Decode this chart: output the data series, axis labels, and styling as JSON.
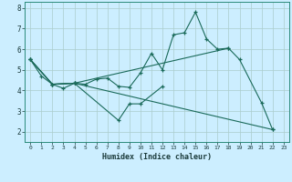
{
  "xlabel": "Humidex (Indice chaleur)",
  "background_color": "#cceeff",
  "grid_color": "#aacccc",
  "line_color": "#1a6a5a",
  "xlim": [
    -0.5,
    23.5
  ],
  "ylim": [
    1.5,
    8.3
  ],
  "yticks": [
    2,
    3,
    4,
    5,
    6,
    7,
    8
  ],
  "xticks": [
    0,
    1,
    2,
    3,
    4,
    5,
    6,
    7,
    8,
    9,
    10,
    11,
    12,
    13,
    14,
    15,
    16,
    17,
    18,
    19,
    20,
    21,
    22,
    23
  ],
  "series_connected": [
    [
      [
        0,
        5.5
      ],
      [
        1,
        4.7
      ],
      [
        2,
        4.3
      ],
      [
        3,
        4.1
      ],
      [
        4,
        4.35
      ],
      [
        5,
        4.3
      ],
      [
        6,
        4.55
      ],
      [
        7,
        4.6
      ],
      [
        8,
        4.2
      ],
      [
        9,
        4.15
      ],
      [
        10,
        4.85
      ],
      [
        11,
        5.8
      ],
      [
        12,
        5.0
      ],
      [
        13,
        6.7
      ],
      [
        14,
        6.8
      ],
      [
        15,
        7.8
      ],
      [
        16,
        6.5
      ],
      [
        17,
        6.0
      ],
      [
        18,
        6.05
      ],
      [
        19,
        5.5
      ],
      [
        21,
        3.4
      ],
      [
        22,
        2.1
      ]
    ],
    [
      [
        0,
        5.5
      ],
      [
        2,
        4.3
      ],
      [
        4,
        4.35
      ],
      [
        8,
        2.55
      ],
      [
        9,
        3.35
      ],
      [
        10,
        3.35
      ],
      [
        12,
        4.2
      ]
    ],
    [
      [
        0,
        5.5
      ],
      [
        2,
        4.3
      ],
      [
        4,
        4.35
      ],
      [
        22,
        2.1
      ]
    ],
    [
      [
        0,
        5.5
      ],
      [
        2,
        4.3
      ],
      [
        4,
        4.35
      ],
      [
        18,
        6.05
      ]
    ]
  ]
}
